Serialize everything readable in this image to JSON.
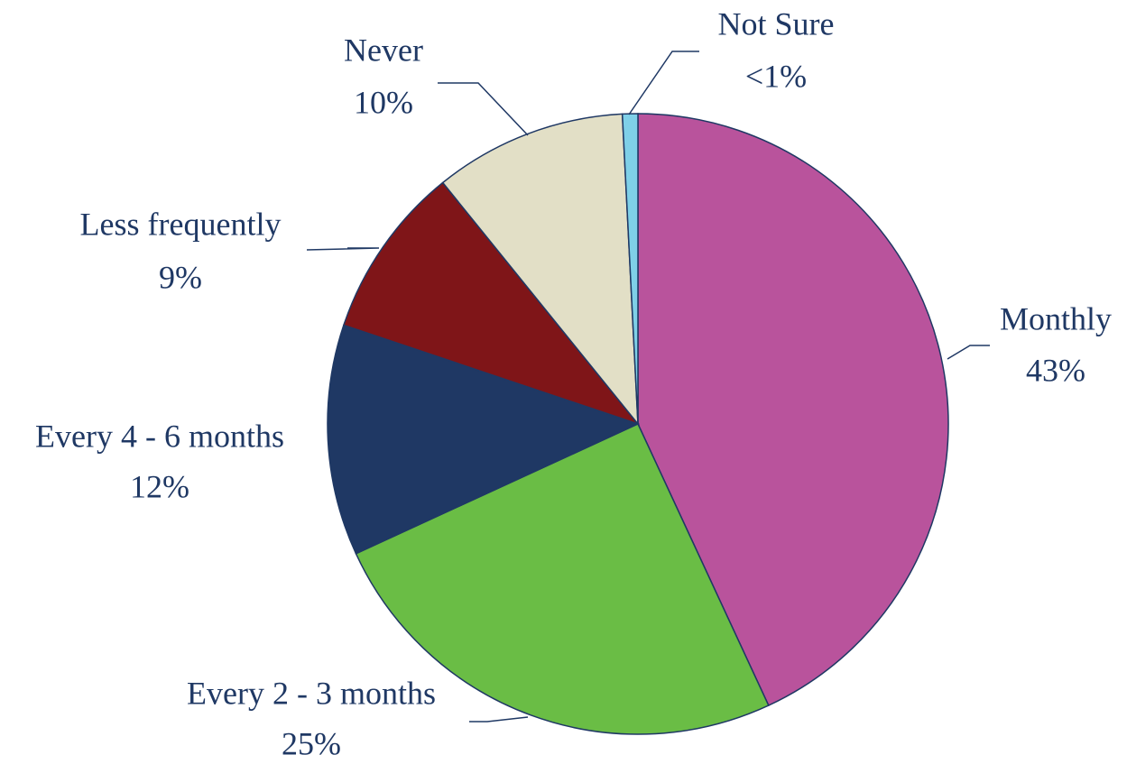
{
  "chart_data": {
    "type": "pie",
    "categories": [
      "Monthly",
      "Every 2 - 3 months",
      "Every 4 - 6 months",
      "Less frequently",
      "Never",
      "Not Sure"
    ],
    "values": [
      43,
      25,
      12,
      9,
      10,
      0.8
    ],
    "value_labels": [
      "43%",
      "25%",
      "12%",
      "9%",
      "10%",
      "<1%"
    ],
    "colors": [
      "#b9539c",
      "#6abd45",
      "#1f3864",
      "#7f1518",
      "#e2dfc6",
      "#7fd0e8"
    ]
  }
}
